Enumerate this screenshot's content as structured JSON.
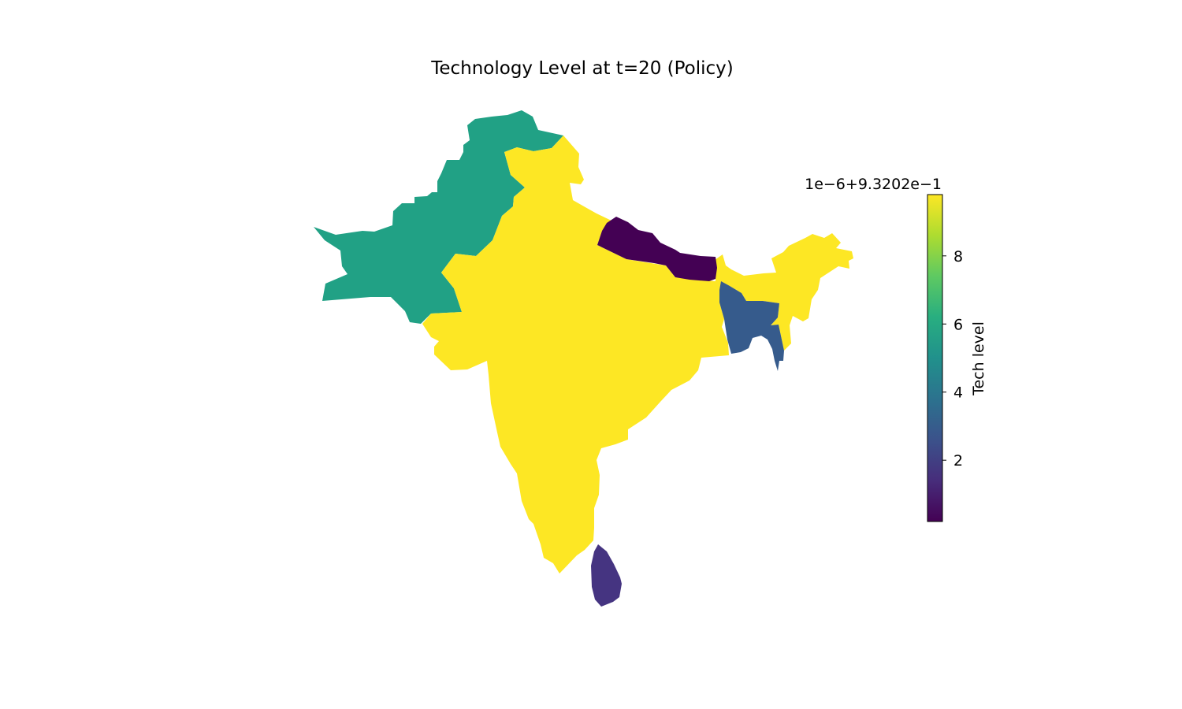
{
  "title": "Technology Level at t=20 (Policy)",
  "colorbar": {
    "label": "Tech level",
    "offset_text": "1e−6+9.3202e−1",
    "colormap": "viridis",
    "range": [
      0.2,
      9.8
    ],
    "ticks": [
      {
        "value": 2,
        "label": "2"
      },
      {
        "value": 4,
        "label": "4"
      },
      {
        "value": 6,
        "label": "6"
      },
      {
        "value": 8,
        "label": "8"
      }
    ]
  },
  "regions": [
    {
      "id": "pakistan",
      "value": 6.2,
      "color": "#21a185"
    },
    {
      "id": "india",
      "value": 9.8,
      "color": "#fde724"
    },
    {
      "id": "nepal",
      "value": 0.2,
      "color": "#440154"
    },
    {
      "id": "bangladesh",
      "value": 3.6,
      "color": "#365b8c"
    },
    {
      "id": "sri-lanka",
      "value": 1.6,
      "color": "#453481"
    }
  ]
}
